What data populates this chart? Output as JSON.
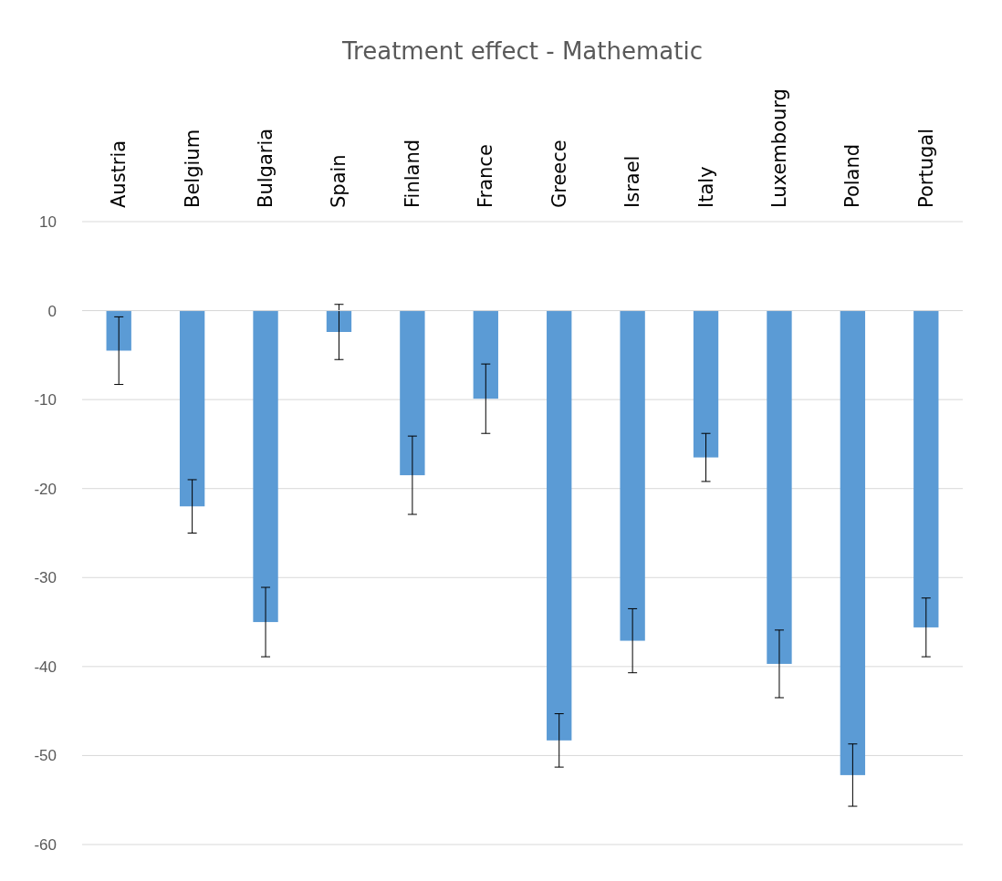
{
  "chart_data": {
    "type": "bar",
    "title": "Treatment effect - Mathematic",
    "categories": [
      "Austria",
      "Belgium",
      "Bulgaria",
      "Spain",
      "Finland",
      "France",
      "Greece",
      "Israel",
      "Italy",
      "Luxembourg",
      "Poland",
      "Portugal"
    ],
    "values": [
      -4.5,
      -22,
      -35,
      -2.4,
      -18.5,
      -9.9,
      -48.3,
      -37.1,
      -16.5,
      -39.7,
      -52.2,
      -35.6
    ],
    "errors": [
      3.8,
      3,
      3.9,
      3.1,
      4.4,
      3.9,
      3,
      3.6,
      2.7,
      3.8,
      3.5,
      3.3
    ],
    "color": "#5b9bd5",
    "ylim": [
      -60,
      10
    ],
    "yticks": [
      -60,
      -50,
      -40,
      -30,
      -20,
      -10,
      0,
      10
    ],
    "grid": "y"
  }
}
